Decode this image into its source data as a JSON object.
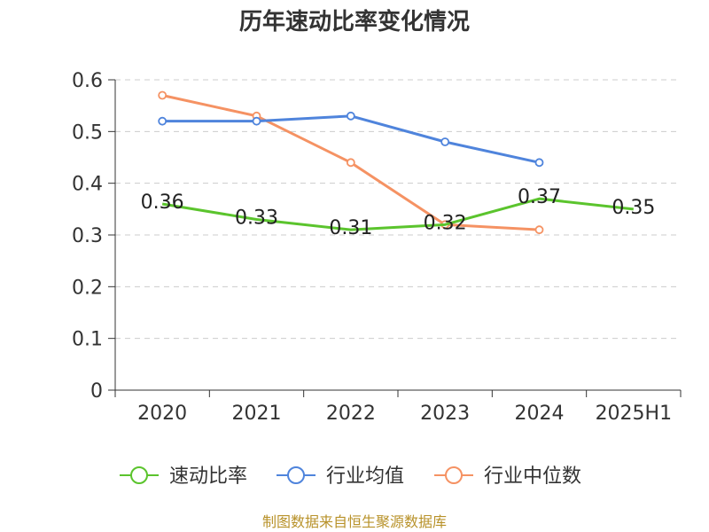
{
  "chart_data": {
    "type": "line",
    "title": "历年速动比率变化情况",
    "categories": [
      "2020",
      "2021",
      "2022",
      "2023",
      "2024",
      "2025H1"
    ],
    "y_ticks": [
      "0",
      "0.1",
      "0.2",
      "0.3",
      "0.4",
      "0.5",
      "0.6"
    ],
    "ylim": [
      0,
      0.6
    ],
    "grid": true,
    "legend_position": "bottom",
    "series": [
      {
        "name": "速动比率",
        "color": "#5bc42d",
        "values": [
          0.36,
          0.33,
          0.31,
          0.32,
          0.37,
          0.35
        ],
        "labels": [
          "0.36",
          "0.33",
          "0.31",
          "0.32",
          "0.37",
          "0.35"
        ],
        "show_markers": false
      },
      {
        "name": "行业均值",
        "color": "#4f84dc",
        "values": [
          0.52,
          0.52,
          0.53,
          0.48,
          0.44,
          null
        ],
        "show_markers": true
      },
      {
        "name": "行业中位数",
        "color": "#f59263",
        "values": [
          0.57,
          0.53,
          0.44,
          0.32,
          0.31,
          null
        ],
        "show_markers": true
      }
    ]
  },
  "source": "制图数据来自恒生聚源数据库"
}
